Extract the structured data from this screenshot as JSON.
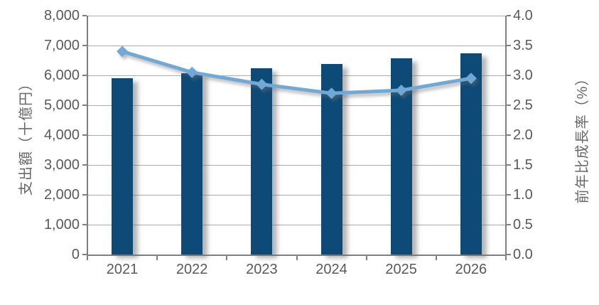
{
  "chart_data": {
    "type": "bar+line combo",
    "title": "",
    "legend": "none",
    "grid": true,
    "categories": [
      "2021",
      "2022",
      "2023",
      "2024",
      "2025",
      "2026"
    ],
    "series": [
      {
        "name": "支出額",
        "type": "bar",
        "axis": "left",
        "unit": "十億円",
        "color": "#0d4a78",
        "values": [
          5900,
          6060,
          6230,
          6370,
          6570,
          6750
        ]
      },
      {
        "name": "前年比成長率",
        "type": "line",
        "axis": "right",
        "unit": "%",
        "color": "#70a9d6",
        "marker": "diamond",
        "values": [
          3.4,
          3.05,
          2.85,
          2.7,
          2.75,
          2.95
        ]
      }
    ],
    "left_axis": {
      "label": "支出額（十億円）",
      "min": 0,
      "max": 8000,
      "step": 1000,
      "ticks": [
        "0",
        "1,000",
        "2,000",
        "3,000",
        "4,000",
        "5,000",
        "6,000",
        "7,000",
        "8,000"
      ]
    },
    "right_axis": {
      "label": "前年比成長率（%）",
      "min": 0,
      "max": 4,
      "step": 0.5,
      "ticks": [
        "0.0",
        "0.5",
        "1.0",
        "1.5",
        "2.0",
        "2.5",
        "3.0",
        "3.5",
        "4.0"
      ]
    },
    "colors": {
      "bar": "#0d4a78",
      "line": "#70a9d6",
      "gridline": "#ababab",
      "axis": "#808080",
      "tick_text": "#595959",
      "background": "#ffffff"
    }
  }
}
